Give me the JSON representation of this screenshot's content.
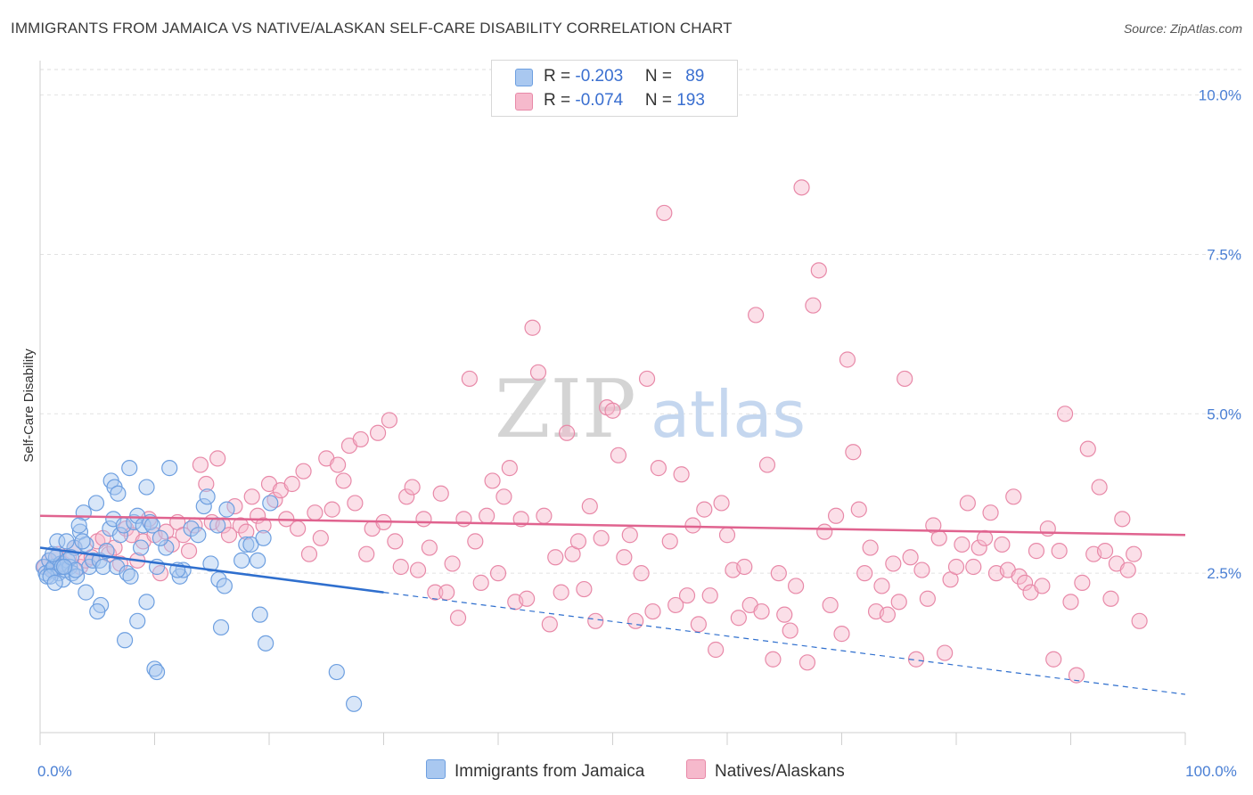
{
  "title": "IMMIGRANTS FROM JAMAICA VS NATIVE/ALASKAN SELF-CARE DISABILITY CORRELATION CHART",
  "source": "Source: ZipAtlas.com",
  "watermark": {
    "zip": "ZIP",
    "atlas": "atlas"
  },
  "legend_top": [
    {
      "r_label": "R = ",
      "r": "-0.203",
      "n_label": "N = ",
      "n": "89",
      "color": "#a9c8f0",
      "border": "#6d9fe0"
    },
    {
      "r_label": "R = ",
      "r": "-0.074",
      "n_label": "N = ",
      "n": "193",
      "color": "#f6b9cc",
      "border": "#e889a8"
    }
  ],
  "chart_data": {
    "type": "scatter",
    "title": "IMMIGRANTS FROM JAMAICA VS NATIVE/ALASKAN SELF-CARE DISABILITY CORRELATION CHART",
    "xlabel": "",
    "ylabel": "Self-Care Disability",
    "xlim": [
      0,
      100
    ],
    "ylim": [
      0,
      10.4
    ],
    "x_ticks": [
      {
        "value": 0,
        "label": "0.0%"
      },
      {
        "value": 100,
        "label": "100.0%"
      }
    ],
    "y_ticks": [
      {
        "value": 2.5,
        "label": "2.5%"
      },
      {
        "value": 5.0,
        "label": "5.0%"
      },
      {
        "value": 7.5,
        "label": "7.5%"
      },
      {
        "value": 10.0,
        "label": "10.0%"
      }
    ],
    "grid": true,
    "legend_position": "bottom",
    "series": [
      {
        "name": "Immigrants from Jamaica",
        "color": "#6d9fe0",
        "fill": "#a9c8f0",
        "trend": {
          "x0": 0,
          "y0": 2.9,
          "x1": 30,
          "y1": 2.2,
          "dash_to_x": 100,
          "dash_to_y": 0.6,
          "color": "#2f6fce"
        },
        "points": [
          [
            0.3,
            2.6
          ],
          [
            0.5,
            2.5
          ],
          [
            0.8,
            2.7
          ],
          [
            1.0,
            2.55
          ],
          [
            1.2,
            2.6
          ],
          [
            1.4,
            2.75
          ],
          [
            1.6,
            2.5
          ],
          [
            1.8,
            2.65
          ],
          [
            2.0,
            2.4
          ],
          [
            2.2,
            2.55
          ],
          [
            2.4,
            2.7
          ],
          [
            2.6,
            2.6
          ],
          [
            2.8,
            2.5
          ],
          [
            3.0,
            2.9
          ],
          [
            3.2,
            2.45
          ],
          [
            0.6,
            2.45
          ],
          [
            1.1,
            2.8
          ],
          [
            1.5,
            3.0
          ],
          [
            1.9,
            2.6
          ],
          [
            2.3,
            3.0
          ],
          [
            2.7,
            2.75
          ],
          [
            3.1,
            2.55
          ],
          [
            3.5,
            3.15
          ],
          [
            3.8,
            3.45
          ],
          [
            4.0,
            2.95
          ],
          [
            4.3,
            2.6
          ],
          [
            4.6,
            2.7
          ],
          [
            4.9,
            3.6
          ],
          [
            5.2,
            2.7
          ],
          [
            5.5,
            2.6
          ],
          [
            5.8,
            2.85
          ],
          [
            6.1,
            3.2
          ],
          [
            6.4,
            3.35
          ],
          [
            6.7,
            2.6
          ],
          [
            7.0,
            3.1
          ],
          [
            7.3,
            3.25
          ],
          [
            7.6,
            2.5
          ],
          [
            7.9,
            2.45
          ],
          [
            8.2,
            3.3
          ],
          [
            8.5,
            3.4
          ],
          [
            3.4,
            3.25
          ],
          [
            3.7,
            3.0
          ],
          [
            6.2,
            3.95
          ],
          [
            6.5,
            3.85
          ],
          [
            6.8,
            3.75
          ],
          [
            7.8,
            4.15
          ],
          [
            9.3,
            3.85
          ],
          [
            11.3,
            4.15
          ],
          [
            12.2,
            2.45
          ],
          [
            14.3,
            3.55
          ],
          [
            14.6,
            3.7
          ],
          [
            15.5,
            3.25
          ],
          [
            16.3,
            3.5
          ],
          [
            17.6,
            2.7
          ],
          [
            18.0,
            2.95
          ],
          [
            18.4,
            2.95
          ],
          [
            20.1,
            3.6
          ],
          [
            9.0,
            3.25
          ],
          [
            9.6,
            3.3
          ],
          [
            10.2,
            2.6
          ],
          [
            11.0,
            2.9
          ],
          [
            12.5,
            2.55
          ],
          [
            13.2,
            3.2
          ],
          [
            13.8,
            3.1
          ],
          [
            14.9,
            2.65
          ],
          [
            15.6,
            2.4
          ],
          [
            16.1,
            2.3
          ],
          [
            19.0,
            2.7
          ],
          [
            19.5,
            3.05
          ],
          [
            4.0,
            2.2
          ],
          [
            5.3,
            2.0
          ],
          [
            5.0,
            1.9
          ],
          [
            7.4,
            1.45
          ],
          [
            8.5,
            1.75
          ],
          [
            9.3,
            2.05
          ],
          [
            10.0,
            1.0
          ],
          [
            10.2,
            0.95
          ],
          [
            15.8,
            1.65
          ],
          [
            19.2,
            1.85
          ],
          [
            19.7,
            1.4
          ],
          [
            25.9,
            0.95
          ],
          [
            27.4,
            0.45
          ],
          [
            9.8,
            3.25
          ],
          [
            8.8,
            2.9
          ],
          [
            10.5,
            3.05
          ],
          [
            12.0,
            2.55
          ],
          [
            2.1,
            2.6
          ],
          [
            0.9,
            2.45
          ],
          [
            1.3,
            2.35
          ]
        ]
      },
      {
        "name": "Natives/Alaskans",
        "color": "#e889a8",
        "fill": "#f6b9cc",
        "trend": {
          "x0": 0,
          "y0": 3.4,
          "x1": 100,
          "y1": 3.1,
          "color": "#e0638f"
        },
        "points": [
          [
            0.4,
            2.6
          ],
          [
            0.8,
            2.7
          ],
          [
            1.2,
            2.55
          ],
          [
            1.6,
            2.8
          ],
          [
            2.0,
            2.65
          ],
          [
            2.5,
            2.75
          ],
          [
            3.0,
            2.9
          ],
          [
            3.5,
            2.6
          ],
          [
            4.0,
            2.7
          ],
          [
            4.5,
            2.75
          ],
          [
            5.0,
            3.0
          ],
          [
            5.5,
            3.05
          ],
          [
            6.0,
            2.8
          ],
          [
            6.5,
            2.9
          ],
          [
            7.0,
            2.65
          ],
          [
            7.5,
            3.2
          ],
          [
            8.0,
            3.1
          ],
          [
            8.5,
            2.7
          ],
          [
            9.0,
            3.0
          ],
          [
            9.5,
            3.35
          ],
          [
            10.0,
            3.1
          ],
          [
            10.5,
            2.5
          ],
          [
            11.0,
            3.15
          ],
          [
            11.5,
            2.95
          ],
          [
            12.0,
            3.3
          ],
          [
            12.5,
            3.1
          ],
          [
            13.0,
            2.85
          ],
          [
            13.5,
            3.25
          ],
          [
            14.0,
            4.2
          ],
          [
            14.5,
            3.9
          ],
          [
            15.0,
            3.3
          ],
          [
            15.5,
            4.3
          ],
          [
            16.0,
            3.25
          ],
          [
            16.5,
            3.1
          ],
          [
            17.0,
            3.55
          ],
          [
            17.5,
            3.25
          ],
          [
            18.0,
            3.15
          ],
          [
            18.5,
            3.7
          ],
          [
            19.0,
            3.4
          ],
          [
            19.5,
            3.25
          ],
          [
            20.0,
            3.9
          ],
          [
            20.5,
            3.65
          ],
          [
            21.0,
            3.8
          ],
          [
            21.5,
            3.35
          ],
          [
            22.0,
            3.9
          ],
          [
            22.5,
            3.2
          ],
          [
            23.0,
            4.1
          ],
          [
            23.5,
            2.8
          ],
          [
            24.0,
            3.45
          ],
          [
            24.5,
            3.05
          ],
          [
            25.0,
            4.3
          ],
          [
            25.5,
            3.5
          ],
          [
            26.0,
            4.2
          ],
          [
            26.5,
            3.95
          ],
          [
            27.0,
            4.5
          ],
          [
            27.5,
            3.6
          ],
          [
            28.0,
            4.6
          ],
          [
            28.5,
            2.8
          ],
          [
            29.0,
            3.2
          ],
          [
            29.5,
            4.7
          ],
          [
            30.0,
            3.3
          ],
          [
            30.5,
            4.9
          ],
          [
            31.0,
            3.0
          ],
          [
            31.5,
            2.6
          ],
          [
            32.0,
            3.7
          ],
          [
            32.5,
            3.85
          ],
          [
            33.0,
            2.55
          ],
          [
            33.5,
            3.35
          ],
          [
            34.0,
            2.9
          ],
          [
            34.5,
            2.2
          ],
          [
            35.0,
            3.75
          ],
          [
            35.5,
            2.2
          ],
          [
            36.0,
            2.65
          ],
          [
            36.5,
            1.8
          ],
          [
            37.0,
            3.35
          ],
          [
            37.5,
            5.55
          ],
          [
            38.0,
            3.0
          ],
          [
            38.5,
            2.35
          ],
          [
            39.0,
            3.4
          ],
          [
            39.5,
            3.95
          ],
          [
            40.0,
            2.5
          ],
          [
            40.5,
            3.7
          ],
          [
            41.0,
            4.15
          ],
          [
            41.5,
            2.05
          ],
          [
            42.0,
            3.35
          ],
          [
            42.5,
            2.1
          ],
          [
            43.0,
            6.35
          ],
          [
            43.5,
            5.65
          ],
          [
            44.0,
            3.4
          ],
          [
            44.5,
            1.7
          ],
          [
            45.0,
            2.75
          ],
          [
            45.5,
            2.2
          ],
          [
            46.0,
            4.7
          ],
          [
            46.5,
            2.8
          ],
          [
            47.0,
            3.0
          ],
          [
            47.5,
            2.25
          ],
          [
            48.0,
            3.55
          ],
          [
            48.5,
            1.75
          ],
          [
            49.0,
            3.05
          ],
          [
            49.5,
            5.1
          ],
          [
            50.0,
            5.05
          ],
          [
            50.5,
            4.35
          ],
          [
            51.0,
            2.75
          ],
          [
            51.5,
            3.1
          ],
          [
            52.0,
            1.75
          ],
          [
            52.5,
            2.5
          ],
          [
            53.0,
            5.55
          ],
          [
            53.5,
            1.9
          ],
          [
            54.0,
            4.15
          ],
          [
            54.5,
            8.15
          ],
          [
            55.0,
            3.0
          ],
          [
            55.5,
            2.0
          ],
          [
            56.0,
            4.05
          ],
          [
            56.5,
            2.15
          ],
          [
            57.0,
            3.25
          ],
          [
            57.5,
            1.7
          ],
          [
            58.0,
            3.5
          ],
          [
            58.5,
            2.15
          ],
          [
            59.0,
            1.3
          ],
          [
            59.5,
            3.6
          ],
          [
            60.0,
            3.1
          ],
          [
            60.5,
            2.55
          ],
          [
            61.0,
            1.8
          ],
          [
            61.5,
            2.6
          ],
          [
            62.0,
            2.0
          ],
          [
            62.5,
            6.55
          ],
          [
            63.0,
            1.9
          ],
          [
            63.5,
            4.2
          ],
          [
            64.0,
            1.15
          ],
          [
            64.5,
            2.5
          ],
          [
            65.0,
            1.85
          ],
          [
            65.5,
            1.6
          ],
          [
            66.0,
            2.3
          ],
          [
            66.5,
            8.55
          ],
          [
            67.0,
            1.1
          ],
          [
            67.5,
            6.7
          ],
          [
            68.0,
            7.25
          ],
          [
            68.5,
            3.15
          ],
          [
            69.0,
            2.0
          ],
          [
            69.5,
            3.4
          ],
          [
            70.0,
            1.55
          ],
          [
            70.5,
            5.85
          ],
          [
            71.0,
            4.4
          ],
          [
            71.5,
            3.5
          ],
          [
            72.0,
            2.5
          ],
          [
            72.5,
            2.9
          ],
          [
            73.0,
            1.9
          ],
          [
            73.5,
            2.3
          ],
          [
            74.0,
            1.85
          ],
          [
            74.5,
            2.65
          ],
          [
            75.0,
            2.05
          ],
          [
            75.5,
            5.55
          ],
          [
            76.0,
            2.75
          ],
          [
            76.5,
            1.15
          ],
          [
            77.0,
            2.55
          ],
          [
            77.5,
            2.1
          ],
          [
            78.0,
            3.25
          ],
          [
            78.5,
            3.05
          ],
          [
            79.0,
            1.25
          ],
          [
            79.5,
            2.4
          ],
          [
            80.0,
            2.6
          ],
          [
            80.5,
            2.95
          ],
          [
            81.0,
            3.6
          ],
          [
            81.5,
            2.6
          ],
          [
            82.0,
            2.9
          ],
          [
            82.5,
            3.05
          ],
          [
            83.0,
            3.45
          ],
          [
            83.5,
            2.5
          ],
          [
            84.0,
            2.95
          ],
          [
            84.5,
            2.55
          ],
          [
            85.0,
            3.7
          ],
          [
            85.5,
            2.45
          ],
          [
            86.0,
            2.35
          ],
          [
            86.5,
            2.2
          ],
          [
            87.0,
            2.85
          ],
          [
            87.5,
            2.3
          ],
          [
            88.0,
            3.2
          ],
          [
            88.5,
            1.15
          ],
          [
            89.0,
            2.85
          ],
          [
            89.5,
            5.0
          ],
          [
            90.0,
            2.05
          ],
          [
            90.5,
            0.9
          ],
          [
            91.0,
            2.35
          ],
          [
            91.5,
            4.45
          ],
          [
            92.0,
            2.8
          ],
          [
            92.5,
            3.85
          ],
          [
            93.0,
            2.85
          ],
          [
            93.5,
            2.1
          ],
          [
            94.0,
            2.65
          ],
          [
            94.5,
            3.35
          ],
          [
            95.0,
            2.55
          ],
          [
            95.5,
            2.8
          ],
          [
            96.0,
            1.75
          ]
        ]
      }
    ]
  },
  "legend_bottom": [
    {
      "label": "Immigrants from Jamaica",
      "color": "#a9c8f0",
      "border": "#6d9fe0"
    },
    {
      "label": "Natives/Alaskans",
      "color": "#f6b9cc",
      "border": "#e889a8"
    }
  ]
}
